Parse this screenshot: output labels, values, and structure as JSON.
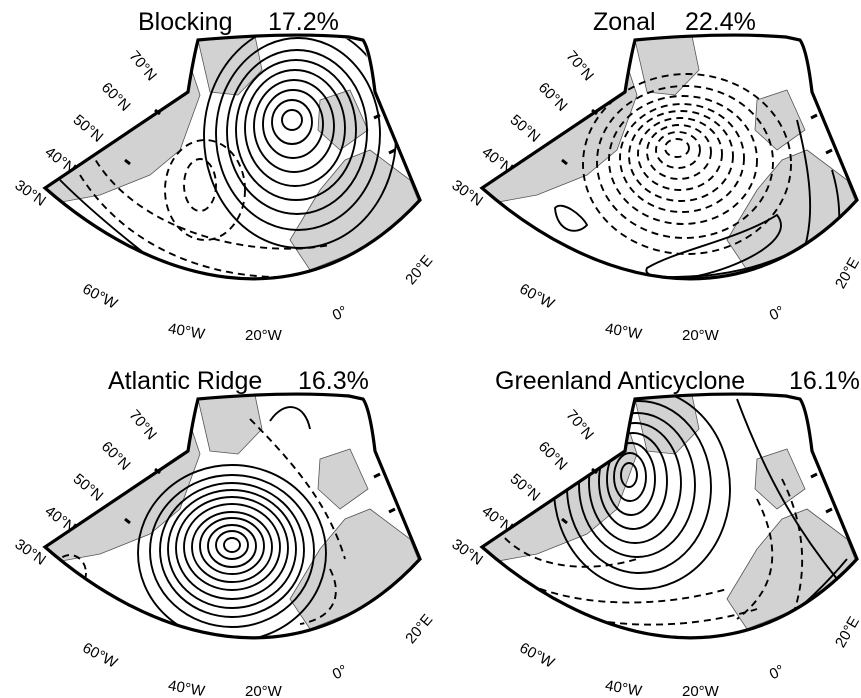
{
  "panels": [
    {
      "id": "blocking",
      "title": "Blocking",
      "frequency": "17.2%",
      "lat_labels": [
        "70°N",
        "60°N",
        "50°N",
        "40°N",
        "30°N"
      ],
      "lon_labels": [
        "60°W",
        "40°W",
        "20°W",
        "0°",
        "20°E"
      ],
      "anomaly": {
        "center": "high",
        "contours_solid": 9,
        "contours_dashed": 4
      }
    },
    {
      "id": "zonal",
      "title": "Zonal",
      "frequency": "22.4%",
      "lat_labels": [
        "70°N",
        "60°N",
        "50°N",
        "40°N",
        "30°N"
      ],
      "lon_labels": [
        "60°W",
        "40°W",
        "20°W",
        "0°",
        "20°E"
      ],
      "anomaly": {
        "center": "low",
        "contours_solid": 5,
        "contours_dashed": 9
      }
    },
    {
      "id": "atlantic-ridge",
      "title": "Atlantic Ridge",
      "frequency": "16.3%",
      "lat_labels": [
        "70°N",
        "60°N",
        "50°N",
        "40°N",
        "30°N"
      ],
      "lon_labels": [
        "60°W",
        "40°W",
        "20°W",
        "0°",
        "20°E"
      ],
      "anomaly": {
        "center": "high",
        "contours_solid": 12,
        "contours_dashed": 4
      }
    },
    {
      "id": "greenland-anticyclone",
      "title": "Greenland Anticyclone",
      "frequency": "16.1%",
      "lat_labels": [
        "70°N",
        "60°N",
        "50°N",
        "40°N",
        "30°N"
      ],
      "lon_labels": [
        "60°W",
        "40°W",
        "20°W",
        "0°",
        "20°E"
      ],
      "anomaly": {
        "center": "high",
        "contours_solid": 10,
        "contours_dashed": 7
      }
    }
  ]
}
